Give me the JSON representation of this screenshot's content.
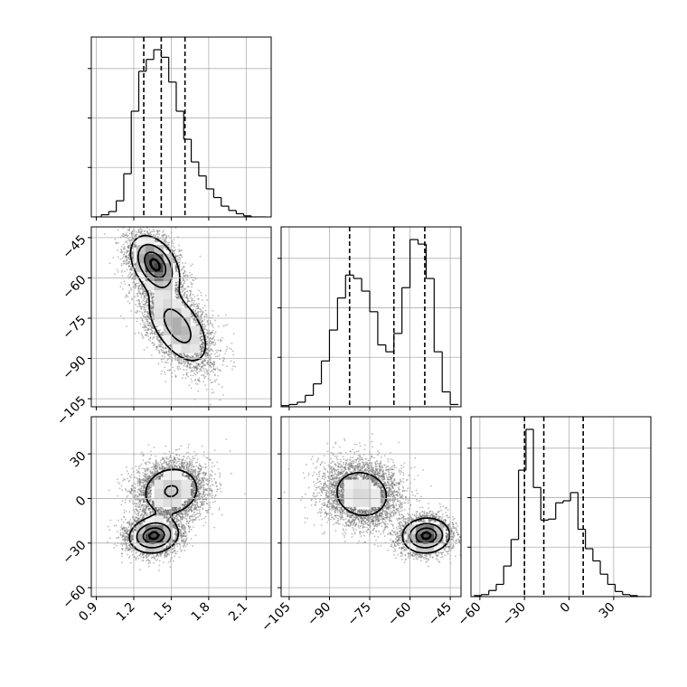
{
  "chart_data": {
    "type": "corner",
    "title": "",
    "grid": true,
    "parameters": [
      {
        "name": "p0",
        "label": "",
        "range": [
          0.86,
          2.3
        ],
        "ticks": [
          0.9,
          1.2,
          1.5,
          1.8,
          2.1
        ],
        "tick_labels": [
          "0.9",
          "1.2",
          "1.5",
          "1.8",
          "2.1"
        ]
      },
      {
        "name": "p1",
        "label": "",
        "range": [
          -108,
          -41
        ],
        "ticks": [
          -105,
          -90,
          -75,
          -60,
          -45
        ],
        "tick_labels": [
          "−105",
          "−90",
          "−75",
          "−60",
          "−45"
        ]
      },
      {
        "name": "p2",
        "label": "",
        "range": [
          -66,
          55
        ],
        "ticks": [
          -60,
          -30,
          0,
          30
        ],
        "tick_labels": [
          "−60",
          "−30",
          "0",
          "30"
        ]
      }
    ],
    "histograms": [
      {
        "parameter": "p0",
        "bin_edges": [
          0.88,
          0.94,
          1.0,
          1.06,
          1.12,
          1.18,
          1.24,
          1.3,
          1.36,
          1.42,
          1.48,
          1.54,
          1.6,
          1.66,
          1.72,
          1.78,
          1.84,
          1.9,
          1.96,
          2.02,
          2.08,
          2.14,
          2.2,
          2.26
        ],
        "counts": [
          0,
          2,
          5,
          15,
          40,
          98,
          135,
          146,
          155,
          148,
          125,
          98,
          72,
          51,
          38,
          26,
          18,
          10,
          6,
          3,
          1,
          0,
          0
        ],
        "quantiles": [
          1.28,
          1.42,
          1.61
        ]
      },
      {
        "parameter": "p1",
        "bin_edges": [
          -108,
          -105,
          -102,
          -99,
          -96,
          -93,
          -90,
          -87,
          -84,
          -81,
          -78,
          -75,
          -72,
          -69,
          -66,
          -63,
          -60,
          -57,
          -54,
          -51,
          -48,
          -45,
          -42
        ],
        "counts": [
          1,
          2,
          4,
          10,
          20,
          40,
          67,
          95,
          115,
          112,
          101,
          83,
          54,
          48,
          64,
          104,
          146,
          142,
          112,
          48,
          13,
          2
        ],
        "quantiles": [
          -82.5,
          -66.0,
          -54.5
        ]
      },
      {
        "parameter": "p2",
        "bin_edges": [
          -64,
          -59,
          -54,
          -49,
          -44,
          -39,
          -34,
          -29,
          -24,
          -19,
          -14,
          -9,
          -4,
          1,
          6,
          11,
          16,
          21,
          26,
          31,
          36,
          41,
          46,
          51
        ],
        "counts": [
          1,
          2,
          6,
          12,
          30,
          56,
          124,
          164,
          107,
          75,
          76,
          92,
          94,
          102,
          66,
          47,
          35,
          22,
          12,
          5,
          2,
          1,
          0
        ],
        "quantiles": [
          -30.0,
          -17.0,
          9.5
        ]
      }
    ],
    "density_panels": [
      {
        "x": "p0",
        "y": "p1",
        "modes": [
          {
            "mean": [
              1.37,
              -55
            ],
            "sd": [
              0.1,
              5.5
            ],
            "rho": -0.4,
            "weight": 0.5
          },
          {
            "mean": [
              1.55,
              -78
            ],
            "sd": [
              0.14,
              8.0
            ],
            "rho": -0.55,
            "weight": 0.5
          }
        ]
      },
      {
        "x": "p0",
        "y": "p2",
        "modes": [
          {
            "mean": [
              1.36,
              -25
            ],
            "sd": [
              0.1,
              6.0
            ],
            "rho": 0.1,
            "weight": 0.5
          },
          {
            "mean": [
              1.5,
              5
            ],
            "sd": [
              0.14,
              10.0
            ],
            "rho": 0.1,
            "weight": 0.5
          }
        ]
      },
      {
        "x": "p1",
        "y": "p2",
        "modes": [
          {
            "mean": [
              -78,
              3
            ],
            "sd": [
              7.0,
              11.0
            ],
            "rho": -0.1,
            "weight": 0.5
          },
          {
            "mean": [
              -54,
              -25
            ],
            "sd": [
              4.5,
              6.0
            ],
            "rho": 0.05,
            "weight": 0.5
          }
        ]
      }
    ]
  }
}
